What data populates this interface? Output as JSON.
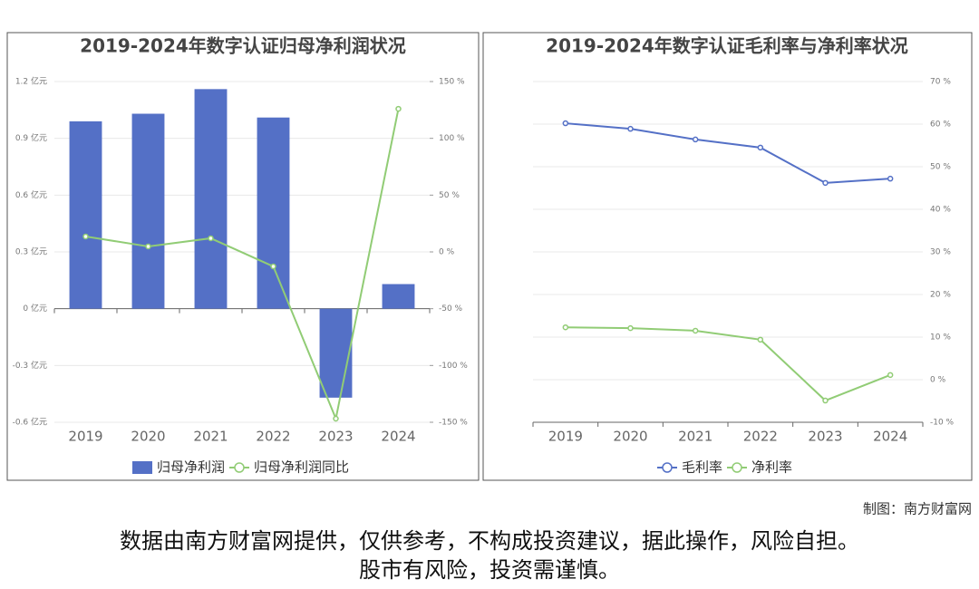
{
  "chart_data": [
    {
      "type": "bar",
      "title": "2019-2024年数字认证归母净利润状况",
      "categories": [
        "2019",
        "2020",
        "2021",
        "2022",
        "2023",
        "2024"
      ],
      "series": [
        {
          "name": "归母净利润",
          "type": "bar",
          "color": "#5470c6",
          "values": [
            0.99,
            1.03,
            1.16,
            1.01,
            -0.47,
            0.13
          ]
        },
        {
          "name": "归母净利润同比",
          "type": "line",
          "axis": "y2",
          "color": "#91cc75",
          "values": [
            13.6,
            4.8,
            12,
            -12.8,
            -146.8,
            126
          ]
        }
      ],
      "ylim": [
        -0.6,
        1.2
      ],
      "yticks": [
        {
          "value": -0.6,
          "label": "-0.6 亿元"
        },
        {
          "value": -0.3,
          "label": "-0.3 亿元"
        },
        {
          "value": 0,
          "label": "0 亿元"
        },
        {
          "value": 0.3,
          "label": "0.3 亿元"
        },
        {
          "value": 0.6,
          "label": "0.6 亿元"
        },
        {
          "value": 0.9,
          "label": "0.9 亿元"
        },
        {
          "value": 1.2,
          "label": "1.2 亿元"
        }
      ],
      "y2lim": [
        -150,
        150
      ],
      "y2ticks": [
        {
          "value": -150,
          "label": "-150 %"
        },
        {
          "value": -100,
          "label": "-100 %"
        },
        {
          "value": -50,
          "label": "-50 %"
        },
        {
          "value": 0,
          "label": "0 %"
        },
        {
          "value": 50,
          "label": "50 %"
        },
        {
          "value": 100,
          "label": "100 %"
        },
        {
          "value": 150,
          "label": "150 %"
        }
      ],
      "grid": true,
      "legend": "bottom"
    },
    {
      "type": "line",
      "title": "2019-2024年数字认证毛利率与净利率状况",
      "categories": [
        "2019",
        "2020",
        "2021",
        "2022",
        "2023",
        "2024"
      ],
      "series": [
        {
          "name": "毛利率",
          "color": "#5470c6",
          "values": [
            60.2,
            58.9,
            56.4,
            54.5,
            46.2,
            47.2
          ]
        },
        {
          "name": "净利率",
          "color": "#91cc75",
          "values": [
            12.3,
            12.1,
            11.5,
            9.4,
            -4.9,
            1.1
          ]
        }
      ],
      "ylim": [
        -10,
        70
      ],
      "yticks": [
        {
          "value": -10,
          "label": "-10 %"
        },
        {
          "value": 0,
          "label": "0 %"
        },
        {
          "value": 10,
          "label": "10 %"
        },
        {
          "value": 20,
          "label": "20 %"
        },
        {
          "value": 30,
          "label": "30 %"
        },
        {
          "value": 40,
          "label": "40 %"
        },
        {
          "value": 50,
          "label": "50 %"
        },
        {
          "value": 60,
          "label": "60 %"
        },
        {
          "value": 70,
          "label": "70 %"
        }
      ],
      "yaxis_position": "right",
      "grid": true,
      "legend": "bottom"
    }
  ],
  "footer": {
    "credit": "制图：南方财富网",
    "disclaimer": [
      "数据由南方财富网提供，仅供参考，不构成投资建议，据此操作，风险自担。",
      "股市有风险，投资需谨慎。"
    ]
  }
}
